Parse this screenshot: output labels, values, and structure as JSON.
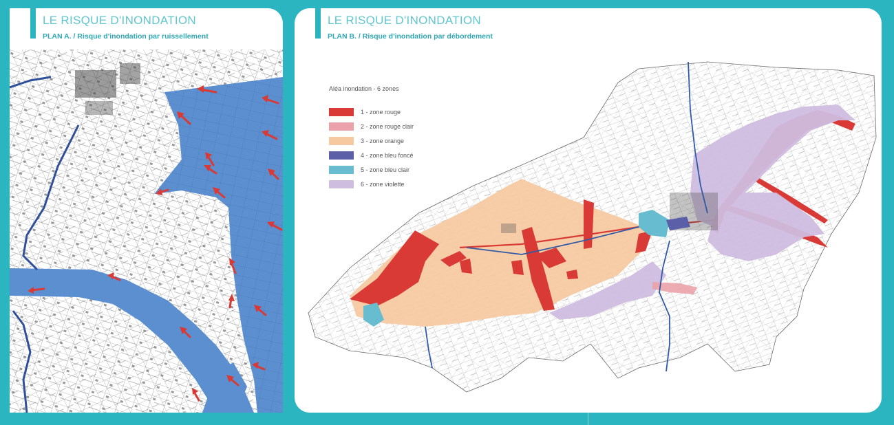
{
  "panel_a": {
    "title": "LE RISQUE D'INONDATION",
    "subtitle": "PLAN A. / Risque d'inondation par ruissellement",
    "colors": {
      "flood": "#5b8fd0",
      "arrow": "#d93a35",
      "river": "#2f4f9a",
      "lines": "#6b6b6b"
    }
  },
  "panel_b": {
    "title": "LE RISQUE D'INONDATION",
    "subtitle": "PLAN B. / Risque d'inondation par débordement",
    "legend": {
      "title": "Aléa inondation - 6 zones",
      "items": [
        {
          "label": "1 - zone rouge",
          "color": "#d93a35"
        },
        {
          "label": "2 - zone rouge clair",
          "color": "#eba2aa"
        },
        {
          "label": "3 - zone orange",
          "color": "#f6c9a0"
        },
        {
          "label": "4 - zone bleu foncé",
          "color": "#5a5fa8"
        },
        {
          "label": "5 - zone bleu clair",
          "color": "#67bcd0"
        },
        {
          "label": "6 - zone violette",
          "color": "#cfbde0"
        }
      ]
    }
  }
}
